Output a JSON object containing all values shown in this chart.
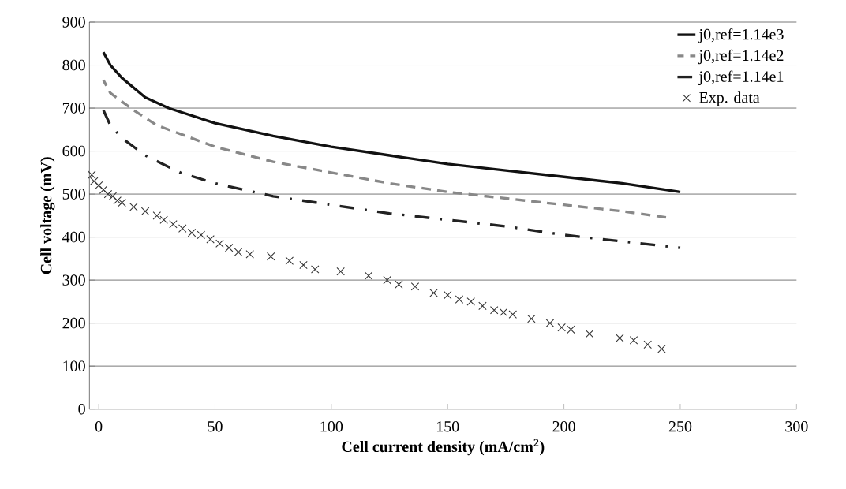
{
  "chart_data": {
    "type": "line",
    "xlabel": "Cell current density (mA/cm$^{2}$)",
    "ylabel": "Cell voltage (mV)",
    "xlim": [
      -4,
      300
    ],
    "xticks": [
      0,
      50,
      100,
      150,
      200,
      250,
      300
    ],
    "ylim": [
      0,
      900
    ],
    "yticks": [
      0,
      100,
      200,
      300,
      400,
      500,
      600,
      700,
      800,
      900
    ],
    "grid": "y",
    "legend": "top right",
    "series": [
      {
        "name": "j0,ref=1.14e3",
        "color": "#111111",
        "line_style": "solid",
        "marker": "none",
        "x": [
          2,
          5,
          10,
          20,
          30,
          50,
          75,
          100,
          125,
          150,
          175,
          200,
          225,
          250
        ],
        "values": [
          830,
          800,
          770,
          725,
          700,
          665,
          635,
          610,
          590,
          570,
          555,
          540,
          525,
          505
        ]
      },
      {
        "name": "j0,ref=1.14e2",
        "color": "#888888",
        "line_style": "dashed",
        "marker": "none",
        "x": [
          2,
          5,
          15,
          25,
          50,
          75,
          100,
          125,
          150,
          175,
          200,
          225,
          245
        ],
        "values": [
          765,
          735,
          695,
          660,
          610,
          575,
          550,
          525,
          505,
          490,
          475,
          460,
          445
        ]
      },
      {
        "name": "j0,ref=1.14e1",
        "color": "#222222",
        "line_style": "dashdot",
        "marker": "none",
        "x": [
          2,
          5,
          10,
          20,
          35,
          50,
          75,
          100,
          125,
          150,
          175,
          200,
          225,
          250
        ],
        "values": [
          695,
          660,
          630,
          590,
          550,
          525,
          495,
          475,
          455,
          440,
          425,
          405,
          390,
          375
        ]
      },
      {
        "name": "Exp. data",
        "type": "scatter",
        "color": "#333333",
        "marker": "cross",
        "x": [
          -3,
          -2,
          0,
          2,
          4,
          6,
          8,
          10,
          15,
          20,
          25,
          28,
          32,
          36,
          40,
          44,
          48,
          52,
          56,
          60,
          65,
          74,
          82,
          88,
          93,
          104,
          116,
          124,
          129,
          136,
          144,
          150,
          155,
          160,
          165,
          170,
          174,
          178,
          186,
          194,
          199,
          203,
          211,
          224,
          230,
          236,
          242
        ],
        "values": [
          545,
          530,
          520,
          510,
          500,
          495,
          485,
          480,
          470,
          460,
          450,
          440,
          430,
          420,
          410,
          405,
          395,
          385,
          375,
          365,
          360,
          355,
          345,
          335,
          325,
          320,
          310,
          300,
          290,
          285,
          270,
          265,
          255,
          250,
          240,
          230,
          225,
          220,
          210,
          200,
          190,
          185,
          175,
          165,
          160,
          150,
          140
        ]
      }
    ]
  }
}
